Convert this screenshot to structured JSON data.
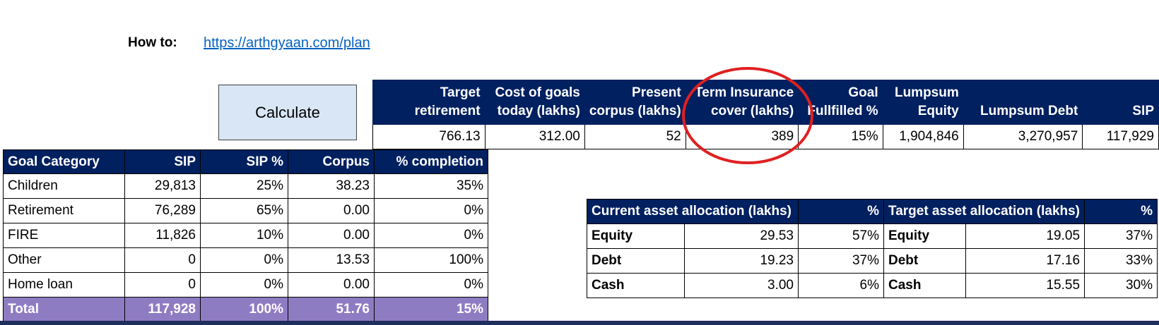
{
  "howto": {
    "label": "How to:",
    "link": "https://arthgyaan.com/plan"
  },
  "calculate_label": "Calculate",
  "summary": {
    "headers": [
      [
        "Target",
        "retirement"
      ],
      [
        "Cost of goals",
        "today (lakhs)"
      ],
      [
        "Present",
        "corpus (lakhs)"
      ],
      [
        "Term Insurance",
        "cover (lakhs)"
      ],
      [
        "Goal",
        "Fullfilled %"
      ],
      [
        "Lumpsum",
        "Equity"
      ],
      [
        "",
        "Lumpsum Debt"
      ],
      [
        "",
        "SIP"
      ]
    ],
    "values": [
      "766.13",
      "312.00",
      "52",
      "389",
      "15%",
      "1,904,846",
      "3,270,957",
      "117,929"
    ]
  },
  "goals": {
    "headers": [
      "Goal Category",
      "SIP",
      "SIP %",
      "Corpus",
      "% completion"
    ],
    "rows": [
      [
        "Children",
        "29,813",
        "25%",
        "38.23",
        "35%"
      ],
      [
        "Retirement",
        "76,289",
        "65%",
        "0.00",
        "0%"
      ],
      [
        "FIRE",
        "11,826",
        "10%",
        "0.00",
        "0%"
      ],
      [
        "Other",
        "0",
        "0%",
        "13.53",
        "100%"
      ],
      [
        "Home loan",
        "0",
        "0%",
        "0.00",
        "0%"
      ]
    ],
    "total": [
      "Total",
      "117,928",
      "100%",
      "51.76",
      "15%"
    ]
  },
  "allocation": {
    "current_header": "Current asset allocation (lakhs)",
    "pct_header": "%",
    "target_header": "Target asset allocation (lakhs)",
    "target_pct_header": "%",
    "rows": [
      [
        "Equity",
        "29.53",
        "57%",
        "Equity",
        "19.05",
        "37%"
      ],
      [
        "Debt",
        "19.23",
        "37%",
        "Debt",
        "17.16",
        "33%"
      ],
      [
        "Cash",
        "3.00",
        "6%",
        "Cash",
        "15.55",
        "30%"
      ]
    ]
  },
  "colors": {
    "header_navy": "#002060",
    "total_purple": "#8e7cc3",
    "button_fill": "#d9e6f5",
    "annotation_red": "#e02020",
    "link_blue": "#0563c1"
  }
}
